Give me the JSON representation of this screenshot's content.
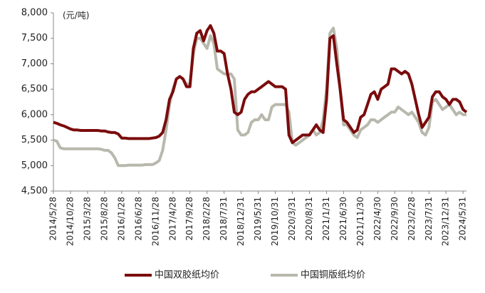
{
  "chart_data": {
    "type": "line",
    "y_label": "(元/吨)",
    "categories": [
      "2014/5/28",
      null,
      null,
      null,
      null,
      "2014/10/28",
      null,
      null,
      null,
      null,
      "2015/3/28",
      null,
      null,
      null,
      null,
      "2015/8/28",
      null,
      null,
      null,
      null,
      "2016/1/28",
      null,
      null,
      null,
      null,
      "2016/6/28",
      null,
      null,
      null,
      null,
      "2016/11/28",
      null,
      null,
      null,
      null,
      "2017/4/28",
      null,
      null,
      null,
      null,
      "2017/9/28",
      null,
      null,
      null,
      null,
      "2018/2/28",
      null,
      null,
      null,
      null,
      "2018/7/31",
      null,
      null,
      null,
      null,
      "2018/12/31",
      null,
      null,
      null,
      null,
      "2019/5/31",
      null,
      null,
      null,
      null,
      "2019/10/31",
      null,
      null,
      null,
      null,
      "2020/3/31",
      null,
      null,
      null,
      null,
      "2020/8/31",
      null,
      null,
      null,
      null,
      "2021/1/31",
      null,
      null,
      null,
      null,
      "2021/6/30",
      null,
      null,
      null,
      null,
      "2021/11/30",
      null,
      null,
      null,
      null,
      "2022/4/30",
      null,
      null,
      null,
      null,
      "2022/9/30",
      null,
      null,
      null,
      null,
      "2023/2/28",
      null,
      null,
      null,
      null,
      "2023/7/31",
      null,
      null,
      null,
      null,
      "2023/12/31",
      null,
      null,
      null,
      null,
      "2024/5/31",
      null
    ],
    "series": [
      {
        "name": "中国双胶纸均价",
        "color": "#7b0c0c",
        "values": [
          5850,
          5830,
          5800,
          5780,
          5750,
          5720,
          5700,
          5700,
          5690,
          5690,
          5690,
          5690,
          5690,
          5690,
          5680,
          5680,
          5660,
          5650,
          5650,
          5620,
          5540,
          5540,
          5530,
          5530,
          5530,
          5530,
          5530,
          5530,
          5530,
          5540,
          5550,
          5580,
          5650,
          5900,
          6300,
          6450,
          6700,
          6750,
          6700,
          6550,
          6550,
          7300,
          7600,
          7650,
          7450,
          7650,
          7750,
          7600,
          7250,
          7250,
          7200,
          6800,
          6500,
          6050,
          6000,
          6050,
          6300,
          6400,
          6450,
          6450,
          6500,
          6550,
          6600,
          6650,
          6600,
          6550,
          6550,
          6550,
          6500,
          5600,
          5450,
          5500,
          5550,
          5600,
          5600,
          5600,
          5700,
          5800,
          5700,
          5650,
          6300,
          7500,
          7550,
          7000,
          6500,
          5900,
          5850,
          5750,
          5650,
          5700,
          5950,
          6000,
          6200,
          6400,
          6450,
          6300,
          6500,
          6550,
          6600,
          6900,
          6900,
          6850,
          6800,
          6850,
          6800,
          6600,
          6300,
          6000,
          5750,
          5850,
          5950,
          6350,
          6450,
          6450,
          6350,
          6300,
          6200,
          6300,
          6300,
          6250,
          6100,
          6050
        ]
      },
      {
        "name": "中国铜版纸均价",
        "color": "#b8b8ad",
        "values": [
          5500,
          5480,
          5350,
          5330,
          5330,
          5330,
          5330,
          5330,
          5330,
          5330,
          5330,
          5330,
          5330,
          5330,
          5320,
          5300,
          5300,
          5250,
          5150,
          5000,
          5000,
          5000,
          5010,
          5010,
          5010,
          5010,
          5010,
          5020,
          5020,
          5020,
          5050,
          5100,
          5300,
          5700,
          6200,
          6500,
          6700,
          6750,
          6700,
          6600,
          6600,
          7200,
          7500,
          7500,
          7400,
          7300,
          7550,
          7400,
          6900,
          6850,
          6800,
          6800,
          6800,
          6700,
          5700,
          5600,
          5600,
          5650,
          5850,
          5900,
          5900,
          6000,
          5900,
          5900,
          6150,
          6200,
          6200,
          6200,
          6200,
          6050,
          5450,
          5400,
          5450,
          5500,
          5550,
          5600,
          5700,
          5600,
          5650,
          5900,
          6500,
          7600,
          7700,
          7300,
          6500,
          5800,
          5800,
          5700,
          5600,
          5550,
          5700,
          5750,
          5800,
          5900,
          5900,
          5850,
          5900,
          5950,
          6000,
          6050,
          6050,
          6150,
          6100,
          6050,
          6000,
          6050,
          5950,
          5850,
          5650,
          5600,
          5750,
          6250,
          6300,
          6200,
          6100,
          6150,
          6200,
          6100,
          6000,
          6050,
          6000,
          6000
        ]
      }
    ],
    "ylim": [
      4500,
      8000
    ],
    "yticks": [
      {
        "value": 4500,
        "label": "4,500"
      },
      {
        "value": 5000,
        "label": "5,000"
      },
      {
        "value": 5500,
        "label": "5,500"
      },
      {
        "value": 6000,
        "label": "6,000"
      },
      {
        "value": 6500,
        "label": "6,500"
      },
      {
        "value": 7000,
        "label": "7,000"
      },
      {
        "value": 7500,
        "label": "7,500"
      },
      {
        "value": 8000,
        "label": "8,000"
      }
    ],
    "legend": "bottom"
  }
}
